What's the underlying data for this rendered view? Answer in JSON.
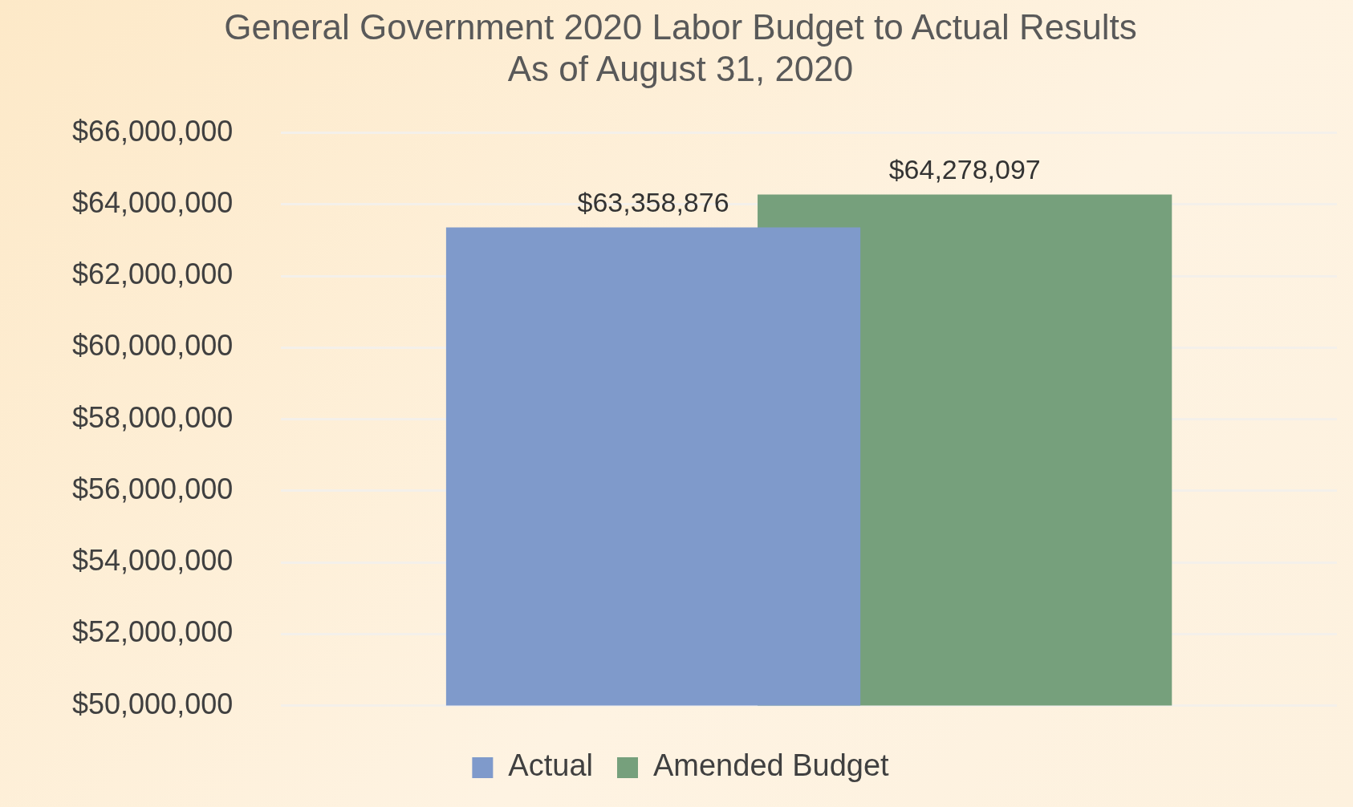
{
  "chart_data": {
    "type": "bar",
    "title": "General Government 2020 Labor Budget to Actual Results",
    "subtitle": "As of August 31, 2020",
    "categories": [
      null
    ],
    "series": [
      {
        "name": "Actual",
        "color": "#7f9acb",
        "values": [
          63358876
        ],
        "value_labels": [
          "$63,358,876"
        ]
      },
      {
        "name": "Amended Budget",
        "color": "#76a07c",
        "values": [
          64278097
        ],
        "value_labels": [
          "$64,278,097"
        ]
      }
    ],
    "ylim": [
      50000000,
      66000000
    ],
    "yticks": [
      {
        "value": 50000000,
        "label": "$50,000,000"
      },
      {
        "value": 52000000,
        "label": "$52,000,000"
      },
      {
        "value": 54000000,
        "label": "$54,000,000"
      },
      {
        "value": 56000000,
        "label": "$56,000,000"
      },
      {
        "value": 58000000,
        "label": "$58,000,000"
      },
      {
        "value": 60000000,
        "label": "$60,000,000"
      },
      {
        "value": 62000000,
        "label": "$62,000,000"
      },
      {
        "value": 64000000,
        "label": "$64,000,000"
      },
      {
        "value": 66000000,
        "label": "$66,000,000"
      }
    ],
    "grid": "y",
    "legend": "bottom"
  }
}
